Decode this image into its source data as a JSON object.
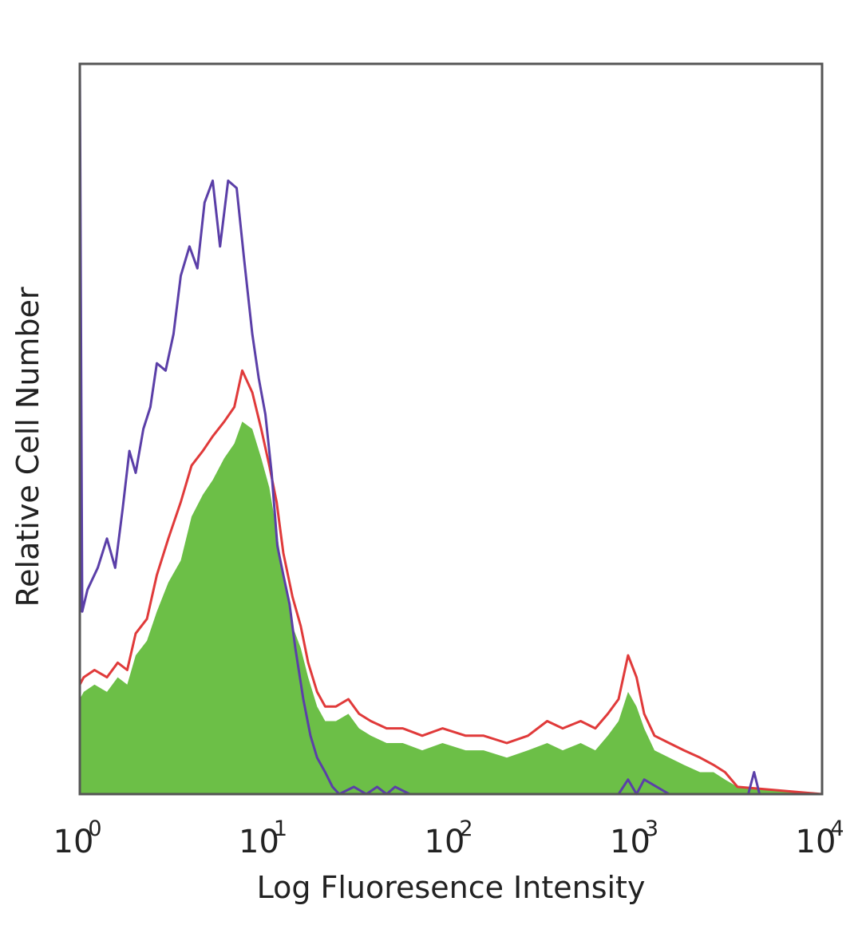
{
  "chart_data": {
    "type": "area",
    "title": "",
    "xlabel": "Log Fluoresence Intensity",
    "ylabel": "Relative Cell Number",
    "x_scale": "log",
    "xlim": [
      1,
      10000
    ],
    "ylim": [
      0,
      100
    ],
    "grid": false,
    "legend": "none",
    "x_ticks": [
      {
        "base": "10",
        "exp": "0"
      },
      {
        "base": "10",
        "exp": "1"
      },
      {
        "base": "10",
        "exp": "2"
      },
      {
        "base": "10",
        "exp": "3"
      },
      {
        "base": "10",
        "exp": "4"
      }
    ],
    "series": [
      {
        "style": "filled",
        "color": "#6cbf47",
        "x": [
          1,
          1.05,
          1.2,
          1.4,
          1.6,
          1.8,
          2.0,
          2.3,
          2.6,
          3.0,
          3.5,
          4.0,
          4.6,
          5.2,
          6.0,
          6.8,
          7.5,
          8.5,
          9.5,
          10.5,
          11.5,
          12.5,
          14,
          15.5,
          17,
          19,
          21,
          24,
          28,
          32,
          37,
          45,
          55,
          70,
          90,
          120,
          150,
          200,
          260,
          330,
          400,
          500,
          600,
          700,
          800,
          900,
          1000,
          1100,
          1250,
          1500,
          1800,
          2200,
          2600,
          3000,
          3500,
          10000
        ],
        "y": [
          13,
          14,
          15,
          14,
          16,
          15,
          19,
          21,
          25,
          29,
          32,
          38,
          41,
          43,
          46,
          48,
          51,
          50,
          46,
          42,
          36,
          30,
          23,
          20,
          16,
          12,
          10,
          10,
          11,
          9,
          8,
          7,
          7,
          6,
          7,
          6,
          6,
          5,
          6,
          7,
          6,
          7,
          6,
          8,
          10,
          14,
          12,
          9,
          6,
          5,
          4,
          3,
          3,
          2,
          1,
          0
        ]
      },
      {
        "style": "line",
        "color": "#e03a3a",
        "x": [
          1,
          1.05,
          1.2,
          1.4,
          1.6,
          1.8,
          2.0,
          2.3,
          2.6,
          3.0,
          3.5,
          4.0,
          4.6,
          5.2,
          6.0,
          6.8,
          7.5,
          8.5,
          9.5,
          10.5,
          11.5,
          12.5,
          14,
          15.5,
          17,
          19,
          21,
          24,
          28,
          32,
          37,
          45,
          55,
          70,
          90,
          120,
          150,
          200,
          260,
          330,
          400,
          500,
          600,
          700,
          800,
          900,
          1000,
          1100,
          1250,
          1500,
          1800,
          2200,
          2600,
          3000,
          3500,
          10000
        ],
        "y": [
          15,
          16,
          17,
          16,
          18,
          17,
          22,
          24,
          30,
          35,
          40,
          45,
          47,
          49,
          51,
          53,
          58,
          55,
          50,
          45,
          40,
          33,
          27,
          23,
          18,
          14,
          12,
          12,
          13,
          11,
          10,
          9,
          9,
          8,
          9,
          8,
          8,
          7,
          8,
          10,
          9,
          10,
          9,
          11,
          13,
          19,
          16,
          11,
          8,
          7,
          6,
          5,
          4,
          3,
          1,
          0
        ]
      },
      {
        "style": "line",
        "color": "#5b3fa8",
        "x": [
          1,
          1.03,
          1.1,
          1.25,
          1.4,
          1.55,
          1.7,
          1.85,
          2.0,
          2.2,
          2.4,
          2.6,
          2.9,
          3.2,
          3.5,
          3.9,
          4.3,
          4.7,
          5.2,
          5.7,
          6.3,
          7.0,
          7.7,
          8.5,
          9.2,
          10.0,
          10.8,
          11.6,
          12.5,
          13.5,
          14.5,
          16,
          17.5,
          19,
          21,
          23,
          25,
          30,
          35,
          40,
          45,
          50,
          60,
          70,
          90,
          120,
          160,
          200,
          300,
          400,
          500,
          700,
          800,
          900,
          1000,
          1100,
          1500,
          2500,
          3000,
          4000,
          4300,
          4600,
          10000
        ],
        "y": [
          100,
          25,
          28,
          31,
          35,
          31,
          39,
          47,
          44,
          50,
          53,
          59,
          58,
          63,
          71,
          75,
          72,
          81,
          84,
          75,
          84,
          83,
          73,
          63,
          57,
          52,
          44,
          34,
          30,
          26,
          20,
          13,
          8,
          5,
          3,
          1,
          0,
          1,
          0,
          1,
          0,
          1,
          0,
          0,
          0,
          0,
          0,
          0,
          0,
          0,
          0,
          0,
          0,
          2,
          0,
          2,
          0,
          0,
          0,
          0,
          3,
          0,
          0
        ]
      }
    ]
  }
}
